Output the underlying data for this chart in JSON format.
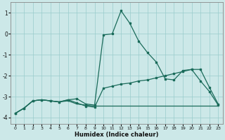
{
  "xlabel": "Humidex (Indice chaleur)",
  "background_color": "#cce8e8",
  "line_color": "#1a6b5a",
  "grid_color": "#99cccc",
  "xlim": [
    -0.5,
    23.5
  ],
  "ylim": [
    -4.3,
    1.5
  ],
  "xticks": [
    0,
    1,
    2,
    3,
    4,
    5,
    6,
    7,
    8,
    9,
    10,
    11,
    12,
    13,
    14,
    15,
    16,
    17,
    18,
    19,
    20,
    21,
    22,
    23
  ],
  "yticks": [
    -4,
    -3,
    -2,
    -1,
    0,
    1
  ],
  "curve1_x": [
    0,
    1,
    2,
    3,
    4,
    5,
    6,
    7,
    8,
    9,
    10,
    11,
    12,
    13,
    14,
    15,
    16,
    17,
    18,
    19,
    20,
    21,
    22,
    23
  ],
  "curve1_y": [
    -3.8,
    -3.55,
    -3.2,
    -3.15,
    -3.2,
    -3.25,
    -3.15,
    -3.1,
    -3.35,
    -3.4,
    -0.05,
    0.0,
    1.1,
    0.5,
    -0.35,
    -0.9,
    -1.35,
    -2.15,
    -2.2,
    -1.75,
    -1.7,
    -2.25,
    -2.75,
    -3.4
  ],
  "curve2_x": [
    0,
    1,
    2,
    3,
    4,
    5,
    6,
    7,
    8,
    9,
    10,
    11,
    12,
    13,
    14,
    15,
    16,
    17,
    18,
    19,
    20,
    21,
    22,
    23
  ],
  "curve2_y": [
    -3.8,
    -3.55,
    -3.2,
    -3.15,
    -3.2,
    -3.25,
    -3.15,
    -3.3,
    -3.45,
    -3.5,
    -2.6,
    -2.5,
    -2.4,
    -2.35,
    -2.25,
    -2.2,
    -2.1,
    -2.0,
    -1.9,
    -1.8,
    -1.7,
    -1.7,
    -2.55,
    -3.35
  ],
  "curve3_x": [
    0,
    1,
    2,
    3,
    4,
    5,
    6,
    7,
    8,
    9,
    10,
    11,
    12,
    13,
    14,
    15,
    16,
    17,
    18,
    19,
    20,
    21,
    22,
    23
  ],
  "curve3_y": [
    -3.8,
    -3.55,
    -3.2,
    -3.15,
    -3.2,
    -3.25,
    -3.2,
    -3.35,
    -3.4,
    -3.45,
    -3.45,
    -3.45,
    -3.45,
    -3.45,
    -3.45,
    -3.45,
    -3.45,
    -3.45,
    -3.45,
    -3.45,
    -3.45,
    -3.45,
    -3.45,
    -3.45
  ]
}
